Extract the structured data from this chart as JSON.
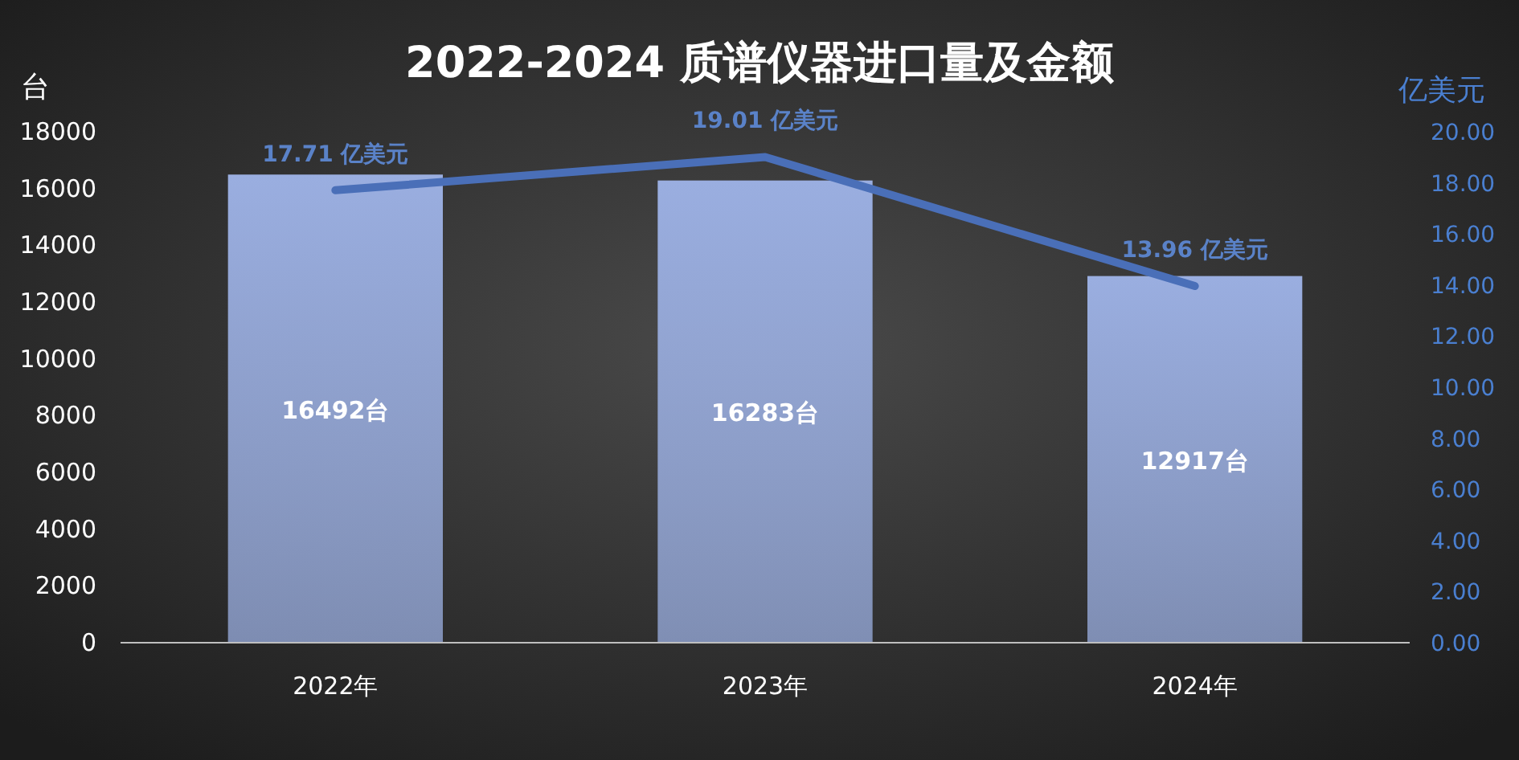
{
  "chart_data": {
    "type": "bar",
    "title": "2022-2024 质谱仪器进口量及金额",
    "ylabel": "台",
    "y2label": "亿美元",
    "categories": [
      "2022年",
      "2023年",
      "2024年"
    ],
    "series": [
      {
        "color": "#9aaee0",
        "values": [
          16492,
          16283,
          12917
        ],
        "value_labels": [
          "16492台",
          "16283台",
          "12917台"
        ]
      },
      {
        "type": "line",
        "axis": "y2",
        "color": "#4a6fb8",
        "values": [
          17.71,
          19.01,
          13.96
        ],
        "value_labels": [
          "17.71 亿美元",
          "19.01 亿美元",
          "13.96 亿美元"
        ]
      }
    ],
    "ylim": [
      0,
      18000
    ],
    "yticks": [
      0,
      2000,
      4000,
      6000,
      8000,
      10000,
      12000,
      14000,
      16000,
      18000
    ],
    "y2lim": [
      0,
      20
    ],
    "y2ticks": [
      {
        "value": 0,
        "label": "0.00"
      },
      {
        "value": 2,
        "label": "2.00"
      },
      {
        "value": 4,
        "label": "4.00"
      },
      {
        "value": 6,
        "label": "6.00"
      },
      {
        "value": 8,
        "label": "8.00"
      },
      {
        "value": 10,
        "label": "10.00"
      },
      {
        "value": 12,
        "label": "12.00"
      },
      {
        "value": 14,
        "label": "14.00"
      },
      {
        "value": 16,
        "label": "16.00"
      },
      {
        "value": 18,
        "label": "18.00"
      },
      {
        "value": 20,
        "label": "20.00"
      }
    ],
    "grid": false,
    "marker": "none"
  }
}
